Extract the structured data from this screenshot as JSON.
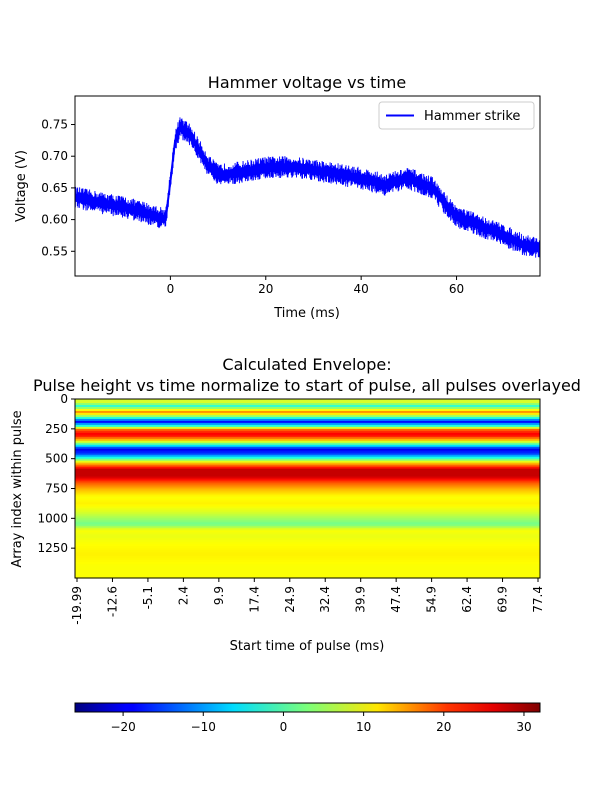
{
  "chart_data": [
    {
      "type": "line",
      "title": "Hammer voltage vs time",
      "xlabel": "Time (ms)",
      "ylabel": "Voltage (V)",
      "xlim": [
        -20,
        77.5
      ],
      "ylim": [
        0.511,
        0.795
      ],
      "xticks": [
        {
          "value": 0,
          "label": "0"
        },
        {
          "value": 20,
          "label": "20"
        },
        {
          "value": 40,
          "label": "40"
        },
        {
          "value": 60,
          "label": "60"
        }
      ],
      "yticks": [
        {
          "value": 0.55,
          "label": "0.55"
        },
        {
          "value": 0.6,
          "label": "0.60"
        },
        {
          "value": 0.65,
          "label": "0.65"
        },
        {
          "value": 0.7,
          "label": "0.70"
        },
        {
          "value": 0.75,
          "label": "0.75"
        }
      ],
      "legend": {
        "position": "top-right",
        "entries": [
          "Hammer strike"
        ]
      },
      "series": [
        {
          "name": "Hammer strike",
          "color": "#0000ff",
          "noise_band": 0.035,
          "x": [
            -20,
            -15,
            -10,
            -5,
            -1,
            0,
            1,
            2,
            4,
            6,
            8,
            10,
            15,
            20,
            25,
            30,
            35,
            40,
            45,
            50,
            55,
            57,
            60,
            65,
            70,
            74,
            77.5
          ],
          "y": [
            0.635,
            0.627,
            0.62,
            0.61,
            0.6,
            0.66,
            0.725,
            0.745,
            0.735,
            0.71,
            0.685,
            0.67,
            0.675,
            0.682,
            0.683,
            0.678,
            0.672,
            0.665,
            0.655,
            0.665,
            0.65,
            0.63,
            0.605,
            0.59,
            0.575,
            0.56,
            0.555
          ]
        }
      ]
    },
    {
      "type": "heatmap",
      "title": "Calculated Envelope:",
      "subtitle": "Pulse height vs time normalize to start of pulse, all pulses overlayed",
      "xlabel": "Start time of pulse (ms)",
      "ylabel": "Array index within pulse",
      "xrange": [
        -19.99,
        77.4
      ],
      "yrange": [
        0,
        1500
      ],
      "xticks": [
        "-19.99",
        "-12.6",
        "-5.1",
        "2.4",
        "9.9",
        "17.4",
        "24.9",
        "32.4",
        "39.9",
        "47.4",
        "54.9",
        "62.4",
        "69.9",
        "77.4"
      ],
      "yticks": [
        {
          "value": 0,
          "label": "0"
        },
        {
          "value": 250,
          "label": "250"
        },
        {
          "value": 500,
          "label": "500"
        },
        {
          "value": 750,
          "label": "750"
        },
        {
          "value": 1000,
          "label": "1000"
        },
        {
          "value": 1250,
          "label": "1250"
        }
      ],
      "colormap": "jet",
      "colorbar": {
        "range": [
          -26,
          32
        ],
        "ticks": [
          {
            "value": -20,
            "label": "−20"
          },
          {
            "value": -10,
            "label": "−10"
          },
          {
            "value": 0,
            "label": "0"
          },
          {
            "value": 10,
            "label": "10"
          },
          {
            "value": 20,
            "label": "20"
          },
          {
            "value": 30,
            "label": "30"
          }
        ]
      },
      "row_profile": {
        "index": [
          0,
          30,
          60,
          110,
          150,
          190,
          230,
          260,
          300,
          340,
          380,
          420,
          460,
          500,
          540,
          590,
          650,
          700,
          760,
          820,
          880,
          950,
          1000,
          1050,
          1100,
          1150,
          1200,
          1300,
          1400,
          1500
        ],
        "value": [
          8,
          8,
          -2,
          17,
          2,
          -19,
          0,
          20,
          26,
          15,
          0,
          -20,
          -15,
          0,
          14,
          28,
          28,
          20,
          14,
          10,
          11,
          8,
          5,
          2,
          10,
          9,
          10,
          11,
          10,
          10
        ]
      }
    }
  ]
}
